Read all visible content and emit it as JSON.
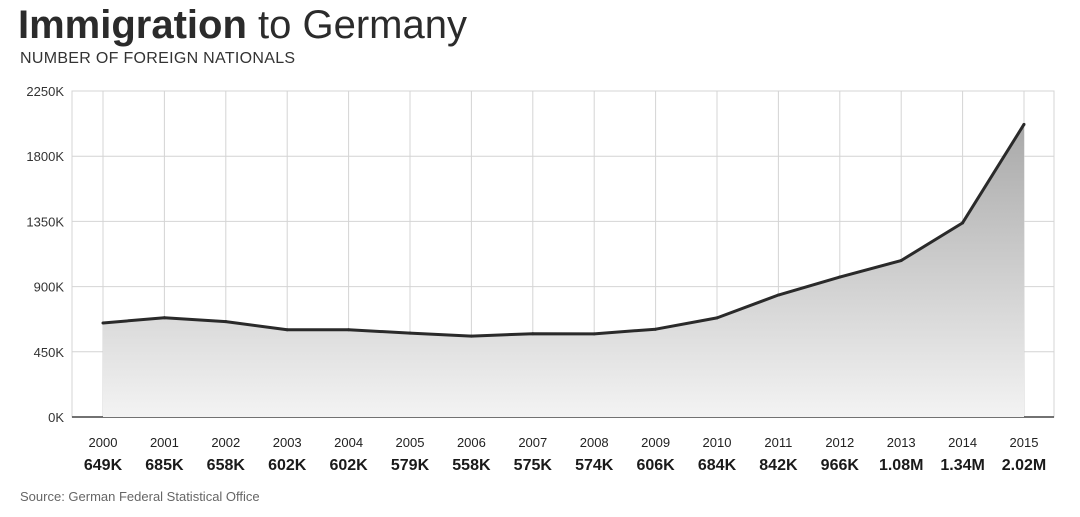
{
  "header": {
    "title_bold": "Immigration",
    "title_rest": " to Germany",
    "subtitle": "NUMBER OF FOREIGN NATIONALS"
  },
  "footer": {
    "source": "Source: German Federal Statistical Office"
  },
  "colors": {
    "line": "#2a2a2a",
    "area_top": "#a9a9a9",
    "area_bottom": "#f3f3f3",
    "grid": "#d4d4d4"
  },
  "chart_data": {
    "type": "area",
    "title": "Immigration to Germany",
    "subtitle": "NUMBER OF FOREIGN NATIONALS",
    "xlabel": "",
    "ylabel": "",
    "ylim": [
      0,
      2250
    ],
    "yticks": [
      0,
      450,
      900,
      1350,
      1800,
      2250
    ],
    "ytick_labels": [
      "0K",
      "450K",
      "900K",
      "1350K",
      "1800K",
      "2250K"
    ],
    "grid": true,
    "categories": [
      "2000",
      "2001",
      "2002",
      "2003",
      "2004",
      "2005",
      "2006",
      "2007",
      "2008",
      "2009",
      "2010",
      "2011",
      "2012",
      "2013",
      "2014",
      "2015"
    ],
    "values": [
      649,
      685,
      658,
      602,
      602,
      579,
      558,
      575,
      574,
      606,
      684,
      842,
      966,
      1080,
      1340,
      2020
    ],
    "value_labels": [
      "649K",
      "685K",
      "658K",
      "602K",
      "602K",
      "579K",
      "558K",
      "575K",
      "574K",
      "606K",
      "684K",
      "842K",
      "966K",
      "1.08M",
      "1.34M",
      "2.02M"
    ],
    "units": "thousands"
  }
}
